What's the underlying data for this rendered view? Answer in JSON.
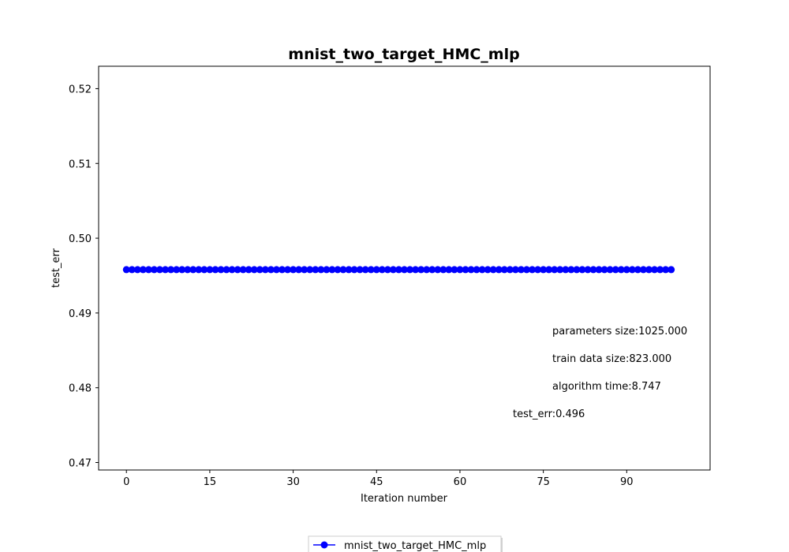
{
  "chart_data": {
    "type": "line",
    "title": "mnist_two_target_HMC_mlp",
    "xlabel": "Iteration number",
    "ylabel": "test_err",
    "xlim": [
      -5,
      105
    ],
    "ylim": [
      0.469,
      0.523
    ],
    "xticks": [
      0,
      15,
      30,
      45,
      60,
      75,
      90
    ],
    "yticks": [
      0.47,
      0.48,
      0.49,
      0.5,
      0.51,
      0.52
    ],
    "ytick_labels": [
      "0.47",
      "0.48",
      "0.49",
      "0.50",
      "0.51",
      "0.52"
    ],
    "grid": false,
    "legend_position": "bottom-center-outside",
    "series": [
      {
        "name": "mnist_two_target_HMC_mlp",
        "color": "#0000ff",
        "marker": "circle",
        "x_start": 0,
        "x_end": 98,
        "x_step": 1,
        "constant_value": 0.4958
      }
    ],
    "annotations": [
      "parameters size:1025.000",
      "train data size:823.000",
      "algorithm time:8.747",
      "test_err:0.496"
    ]
  }
}
